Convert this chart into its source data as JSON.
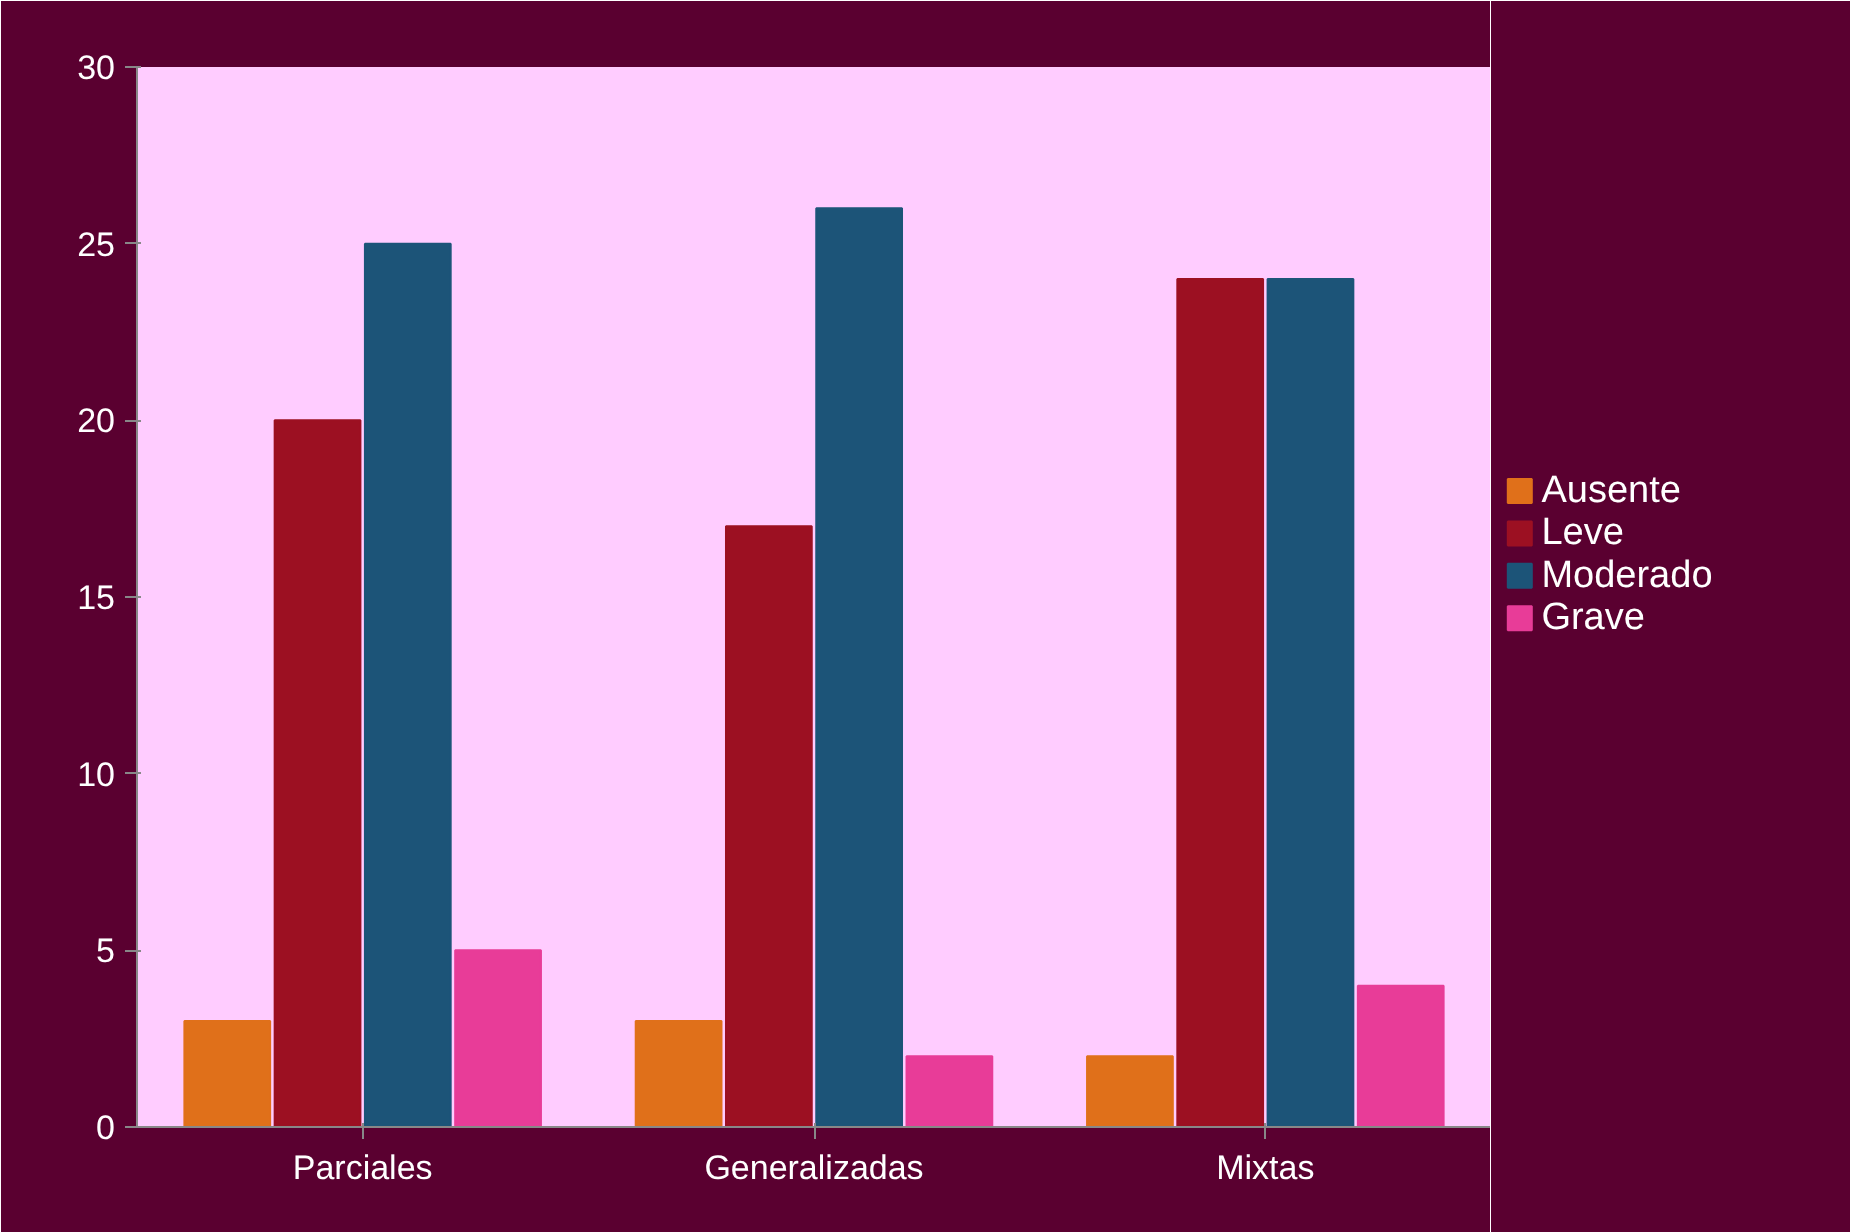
{
  "chart_data": {
    "type": "bar",
    "categories": [
      "Parciales",
      "Generalizadas",
      "Mixtas"
    ],
    "series": [
      {
        "name": "Ausente",
        "color": "#e0701a",
        "values": [
          3,
          3,
          2
        ]
      },
      {
        "name": "Leve",
        "color": "#9c1022",
        "values": [
          20,
          17,
          24
        ]
      },
      {
        "name": "Moderado",
        "color": "#1c5478",
        "values": [
          25,
          26,
          24
        ]
      },
      {
        "name": "Grave",
        "color": "#e83c98",
        "values": [
          5,
          2,
          4
        ]
      }
    ],
    "ylim": [
      0,
      30
    ],
    "yticks": [
      0,
      5,
      10,
      15,
      20,
      25,
      30
    ],
    "grid": false,
    "legend": "right"
  }
}
